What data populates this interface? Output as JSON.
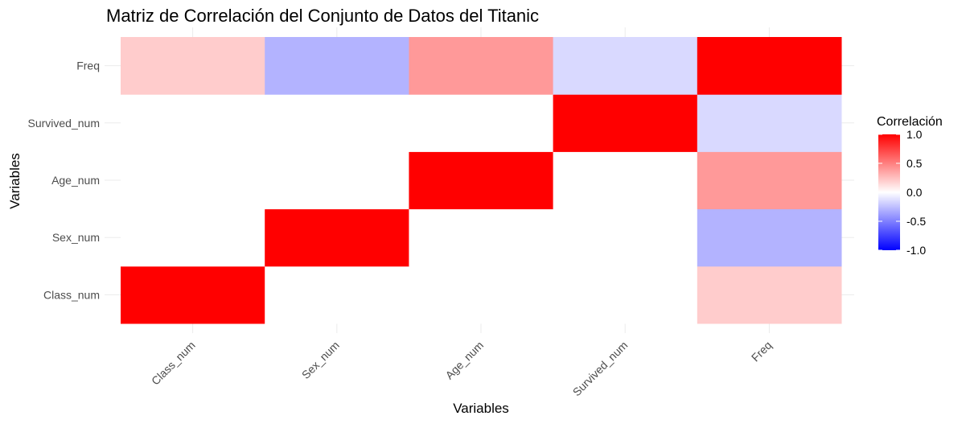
{
  "chart_data": {
    "type": "heatmap",
    "title": "Matriz de Correlación del Conjunto de Datos del Titanic",
    "xlabel": "Variables",
    "ylabel": "Variables",
    "x_categories": [
      "Class_num",
      "Sex_num",
      "Age_num",
      "Survived_num",
      "Freq"
    ],
    "y_categories": [
      "Class_num",
      "Sex_num",
      "Age_num",
      "Survived_num",
      "Freq"
    ],
    "matrix": [
      [
        1.0,
        0.0,
        0.0,
        0.0,
        0.2
      ],
      [
        0.0,
        1.0,
        0.0,
        0.0,
        -0.3
      ],
      [
        0.0,
        0.0,
        1.0,
        0.0,
        0.4
      ],
      [
        0.0,
        0.0,
        0.0,
        1.0,
        -0.15
      ],
      [
        0.2,
        -0.3,
        0.4,
        -0.15,
        1.0
      ]
    ],
    "legend": {
      "title": "Correlación",
      "ticks": [
        "1.0",
        "0.5",
        "0.0",
        "-0.5",
        "-1.0"
      ],
      "range": [
        -1.0,
        1.0
      ],
      "colors": {
        "low": "#0000ff",
        "mid": "#ffffff",
        "high": "#ff0000"
      },
      "position": "right"
    },
    "grid": true
  }
}
